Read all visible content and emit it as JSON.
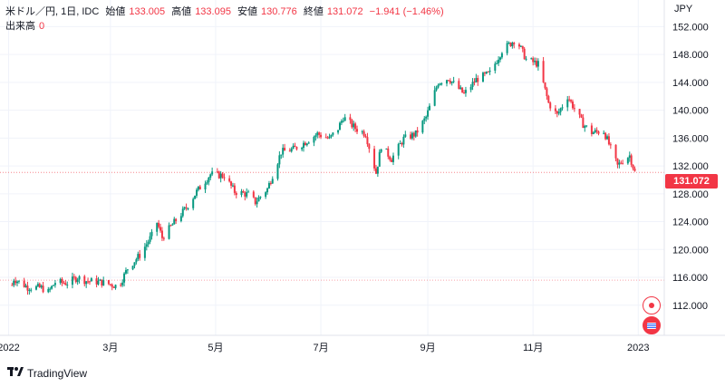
{
  "legend": {
    "symbol": "米ドル／円, 1日, IDC",
    "open_label": "始値",
    "open": "133.005",
    "high_label": "高値",
    "high": "133.095",
    "low_label": "安値",
    "low": "130.776",
    "close_label": "終値",
    "close": "131.072",
    "change": "−1.941 (−1.46%)"
  },
  "volume": {
    "label": "出来高",
    "value": "0"
  },
  "currency": "JPY",
  "last_price": "131.072",
  "brand": "TradingView",
  "colors": {
    "up": "#089981",
    "down": "#f23645",
    "grid": "#f0f3fa",
    "axis_text": "#131722"
  },
  "chart_data": {
    "type": "candlestick",
    "y_ticks": [
      "152.000",
      "148.000",
      "144.000",
      "140.000",
      "136.000",
      "132.000",
      "128.000",
      "124.000",
      "120.000",
      "116.000",
      "112.000"
    ],
    "ylim": [
      109.5,
      154
    ],
    "x_ticks": [
      {
        "label": "2022",
        "date": "2022-01-01"
      },
      {
        "label": "3月",
        "date": "2022-03-01"
      },
      {
        "label": "5月",
        "date": "2022-05-01"
      },
      {
        "label": "7月",
        "date": "2022-07-01"
      },
      {
        "label": "9月",
        "date": "2022-09-01"
      },
      {
        "label": "11月",
        "date": "2022-11-01"
      },
      {
        "label": "2023",
        "date": "2023-01-01"
      }
    ],
    "xlim": [
      "2021-12-27",
      "2023-01-04"
    ],
    "last_price": 131.072,
    "reference_line": 115.6,
    "close_path": [
      [
        "2022-01-03",
        114.9
      ],
      [
        "2022-01-04",
        115.8
      ],
      [
        "2022-01-12",
        114.6
      ],
      [
        "2022-01-20",
        114.5
      ],
      [
        "2022-01-24",
        113.9
      ],
      [
        "2022-01-28",
        115.3
      ],
      [
        "2022-02-04",
        115.2
      ],
      [
        "2022-02-10",
        116.0
      ],
      [
        "2022-02-15",
        115.5
      ],
      [
        "2022-02-24",
        115.3
      ],
      [
        "2022-03-04",
        114.8
      ],
      [
        "2022-03-07",
        115.3
      ],
      [
        "2022-03-11",
        117.3
      ],
      [
        "2022-03-18",
        119.2
      ],
      [
        "2022-03-25",
        122.0
      ],
      [
        "2022-03-28",
        123.9
      ],
      [
        "2022-03-31",
        121.7
      ],
      [
        "2022-04-08",
        124.2
      ],
      [
        "2022-04-14",
        126.0
      ],
      [
        "2022-04-20",
        128.3
      ],
      [
        "2022-04-28",
        130.8
      ],
      [
        "2022-05-06",
        130.6
      ],
      [
        "2022-05-12",
        128.3
      ],
      [
        "2022-05-20",
        127.9
      ],
      [
        "2022-05-24",
        126.8
      ],
      [
        "2022-05-31",
        128.7
      ],
      [
        "2022-06-08",
        134.0
      ],
      [
        "2022-06-15",
        134.4
      ],
      [
        "2022-06-20",
        135.1
      ],
      [
        "2022-06-29",
        136.6
      ],
      [
        "2022-07-06",
        135.9
      ],
      [
        "2022-07-11",
        137.4
      ],
      [
        "2022-07-14",
        139.0
      ],
      [
        "2022-07-21",
        137.4
      ],
      [
        "2022-07-27",
        136.6
      ],
      [
        "2022-08-02",
        131.0
      ],
      [
        "2022-08-05",
        134.9
      ],
      [
        "2022-08-11",
        133.0
      ],
      [
        "2022-08-18",
        135.9
      ],
      [
        "2022-08-25",
        136.6
      ],
      [
        "2022-08-31",
        139.0
      ],
      [
        "2022-09-07",
        144.0
      ],
      [
        "2022-09-13",
        144.6
      ],
      [
        "2022-09-22",
        142.3
      ],
      [
        "2022-09-29",
        144.4
      ],
      [
        "2022-10-07",
        145.3
      ],
      [
        "2022-10-14",
        148.6
      ],
      [
        "2022-10-21",
        150.0
      ],
      [
        "2022-10-24",
        149.3
      ],
      [
        "2022-10-28",
        147.3
      ],
      [
        "2022-11-04",
        146.6
      ],
      [
        "2022-11-10",
        141.0
      ],
      [
        "2022-11-15",
        139.3
      ],
      [
        "2022-11-21",
        142.0
      ],
      [
        "2022-11-30",
        138.0
      ],
      [
        "2022-12-05",
        136.8
      ],
      [
        "2022-12-12",
        137.0
      ],
      [
        "2022-12-20",
        132.0
      ],
      [
        "2022-12-23",
        132.8
      ],
      [
        "2022-12-27",
        133.5
      ],
      [
        "2022-12-30",
        131.1
      ]
    ]
  }
}
